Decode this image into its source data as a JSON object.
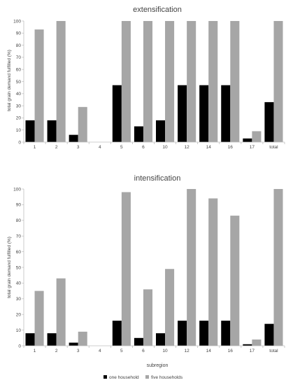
{
  "chart_data": [
    {
      "type": "bar",
      "title": "extensification",
      "ylabel": "total grain demand fulfilled (%)",
      "xlabel": "",
      "ylim": [
        0,
        100
      ],
      "yticks": [
        0,
        10,
        20,
        30,
        40,
        50,
        60,
        70,
        80,
        90,
        100
      ],
      "categories": [
        "1",
        "2",
        "3",
        "4",
        "5",
        "6",
        "10",
        "12",
        "14",
        "16",
        "17",
        "total"
      ],
      "series": [
        {
          "name": "one household",
          "color": "#000000",
          "values": [
            18,
            18,
            6,
            0,
            47,
            13,
            18,
            47,
            47,
            47,
            3,
            33
          ]
        },
        {
          "name": "five households",
          "color": "#a6a6a6",
          "values": [
            93,
            100,
            29,
            0,
            100,
            100,
            100,
            100,
            100,
            100,
            9,
            100
          ]
        }
      ]
    },
    {
      "type": "bar",
      "title": "intensification",
      "ylabel": "total grain demand fulfilled (%)",
      "xlabel": "subregion",
      "ylim": [
        0,
        100
      ],
      "yticks": [
        0,
        10,
        20,
        30,
        40,
        50,
        60,
        70,
        80,
        90,
        100
      ],
      "categories": [
        "1",
        "2",
        "3",
        "4",
        "5",
        "6",
        "10",
        "12",
        "14",
        "16",
        "17",
        "total"
      ],
      "series": [
        {
          "name": "one household",
          "color": "#000000",
          "values": [
            8,
            8,
            2,
            0,
            16,
            5,
            8,
            16,
            16,
            16,
            1,
            14
          ]
        },
        {
          "name": "five households",
          "color": "#a6a6a6",
          "values": [
            35,
            43,
            9,
            0,
            98,
            36,
            49,
            100,
            94,
            83,
            4,
            100
          ]
        }
      ]
    }
  ],
  "legend": {
    "position": "bottom",
    "items": [
      {
        "label": "one household",
        "color": "#000000"
      },
      {
        "label": "five households",
        "color": "#a6a6a6"
      }
    ]
  }
}
